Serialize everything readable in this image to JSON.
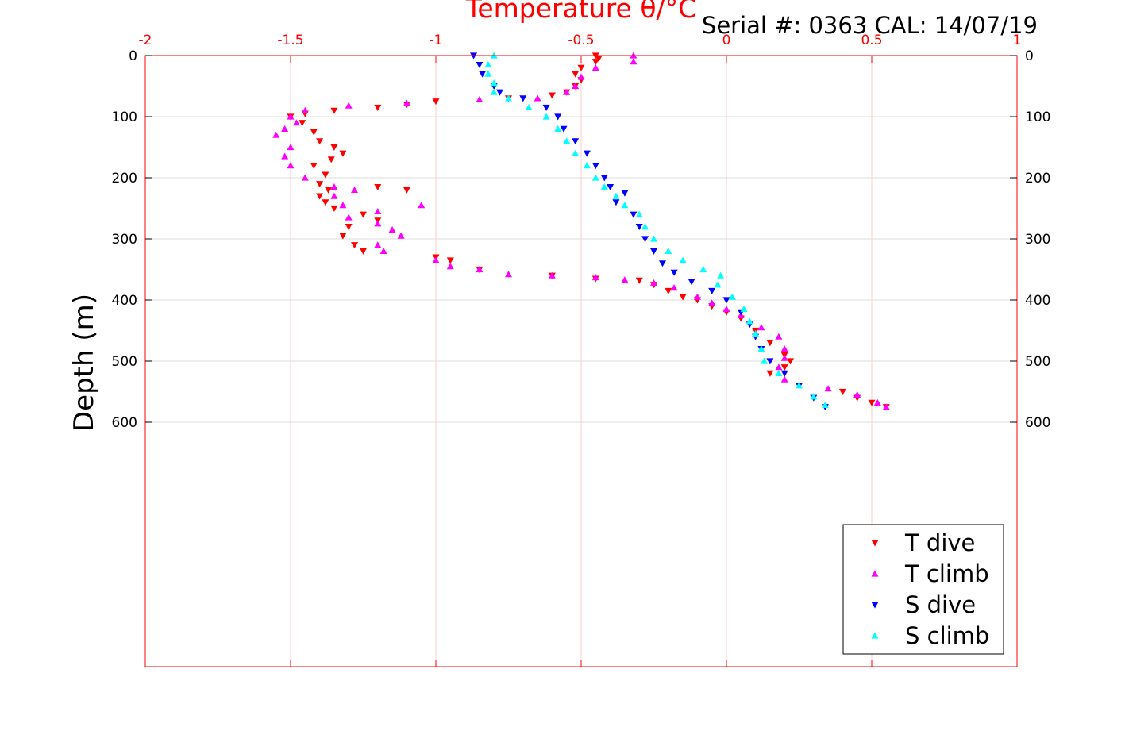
{
  "chart_data": {
    "type": "scatter",
    "title": "Temperature θ/°C",
    "subtitle": "Serial #: 0363  CAL: 14/07/19",
    "xlabel": "Temperature θ/°C",
    "ylabel": "Depth (m)",
    "xlim": [
      -2,
      1
    ],
    "ylim": [
      0,
      1000
    ],
    "y_reversed": true,
    "x_ticks": [
      "-2",
      "-1.5",
      "-1",
      "-0.5",
      "0",
      "0.5",
      "1"
    ],
    "x_tick_values": [
      -2,
      -1.5,
      -1,
      -0.5,
      0,
      0.5,
      1
    ],
    "y_ticks": [
      "0",
      "100",
      "200",
      "300",
      "400",
      "500",
      "600"
    ],
    "y_tick_values": [
      0,
      100,
      200,
      300,
      400,
      500,
      600
    ],
    "grid": true,
    "legend_position": "bottom-right",
    "colors": {
      "axis": "#ff0000",
      "grid": "#dddddd",
      "gridx": "#ffcccc"
    },
    "series": [
      {
        "name": "T dive",
        "color": "#ff0000",
        "marker": "triangle-down",
        "points": [
          [
            -0.45,
            0
          ],
          [
            -0.44,
            5
          ],
          [
            -0.45,
            10
          ],
          [
            -0.5,
            20
          ],
          [
            -0.52,
            30
          ],
          [
            -0.5,
            40
          ],
          [
            -0.52,
            50
          ],
          [
            -0.55,
            60
          ],
          [
            -0.6,
            65
          ],
          [
            -0.75,
            70
          ],
          [
            -1.0,
            75
          ],
          [
            -1.1,
            80
          ],
          [
            -1.2,
            85
          ],
          [
            -1.35,
            90
          ],
          [
            -1.45,
            95
          ],
          [
            -1.5,
            100
          ],
          [
            -1.46,
            110
          ],
          [
            -1.42,
            125
          ],
          [
            -1.4,
            140
          ],
          [
            -1.35,
            150
          ],
          [
            -1.32,
            160
          ],
          [
            -1.36,
            170
          ],
          [
            -1.42,
            180
          ],
          [
            -1.38,
            195
          ],
          [
            -1.4,
            210
          ],
          [
            -1.37,
            220
          ],
          [
            -1.1,
            220
          ],
          [
            -1.2,
            215
          ],
          [
            -1.4,
            230
          ],
          [
            -1.38,
            240
          ],
          [
            -1.35,
            250
          ],
          [
            -1.25,
            260
          ],
          [
            -1.2,
            270
          ],
          [
            -1.3,
            280
          ],
          [
            -1.32,
            295
          ],
          [
            -1.28,
            310
          ],
          [
            -1.25,
            320
          ],
          [
            -1.0,
            330
          ],
          [
            -0.95,
            335
          ],
          [
            -0.85,
            350
          ],
          [
            -0.6,
            360
          ],
          [
            -0.45,
            365
          ],
          [
            -0.3,
            368
          ],
          [
            -0.25,
            375
          ],
          [
            -0.2,
            385
          ],
          [
            -0.15,
            395
          ],
          [
            -0.1,
            400
          ],
          [
            -0.05,
            410
          ],
          [
            0.0,
            420
          ],
          [
            0.05,
            430
          ],
          [
            0.1,
            450
          ],
          [
            0.15,
            470
          ],
          [
            0.2,
            490
          ],
          [
            0.22,
            500
          ],
          [
            0.2,
            510
          ],
          [
            0.15,
            520
          ],
          [
            0.25,
            540
          ],
          [
            0.4,
            550
          ],
          [
            0.45,
            560
          ],
          [
            0.5,
            568
          ],
          [
            0.55,
            575
          ]
        ]
      },
      {
        "name": "T climb",
        "color": "#ff00ff",
        "marker": "triangle-up",
        "points": [
          [
            -0.32,
            0
          ],
          [
            -0.32,
            10
          ],
          [
            -0.45,
            20
          ],
          [
            -0.5,
            35
          ],
          [
            -0.52,
            50
          ],
          [
            -0.55,
            60
          ],
          [
            -0.65,
            70
          ],
          [
            -0.85,
            72
          ],
          [
            -1.1,
            78
          ],
          [
            -1.3,
            82
          ],
          [
            -1.45,
            90
          ],
          [
            -1.5,
            100
          ],
          [
            -1.48,
            110
          ],
          [
            -1.52,
            120
          ],
          [
            -1.55,
            130
          ],
          [
            -1.5,
            150
          ],
          [
            -1.52,
            165
          ],
          [
            -1.5,
            180
          ],
          [
            -1.45,
            200
          ],
          [
            -1.35,
            215
          ],
          [
            -1.28,
            220
          ],
          [
            -1.35,
            230
          ],
          [
            -1.32,
            245
          ],
          [
            -1.2,
            255
          ],
          [
            -1.05,
            245
          ],
          [
            -1.3,
            265
          ],
          [
            -1.2,
            275
          ],
          [
            -1.15,
            285
          ],
          [
            -1.12,
            295
          ],
          [
            -1.2,
            310
          ],
          [
            -1.18,
            320
          ],
          [
            -1.0,
            335
          ],
          [
            -0.95,
            345
          ],
          [
            -0.85,
            350
          ],
          [
            -0.75,
            358
          ],
          [
            -0.6,
            360
          ],
          [
            -0.45,
            363
          ],
          [
            -0.35,
            367
          ],
          [
            -0.25,
            372
          ],
          [
            -0.18,
            380
          ],
          [
            -0.1,
            395
          ],
          [
            -0.05,
            405
          ],
          [
            0.0,
            415
          ],
          [
            0.05,
            425
          ],
          [
            0.12,
            445
          ],
          [
            0.18,
            460
          ],
          [
            0.2,
            480
          ],
          [
            0.2,
            495
          ],
          [
            0.18,
            510
          ],
          [
            0.2,
            530
          ],
          [
            0.35,
            545
          ],
          [
            0.45,
            555
          ],
          [
            0.52,
            568
          ],
          [
            0.55,
            575
          ]
        ]
      },
      {
        "name": "S dive",
        "color": "#0000ff",
        "marker": "triangle-down",
        "points": [
          [
            -0.87,
            0
          ],
          [
            -0.85,
            15
          ],
          [
            -0.84,
            30
          ],
          [
            -0.8,
            50
          ],
          [
            -0.78,
            60
          ],
          [
            -0.7,
            70
          ],
          [
            -0.62,
            85
          ],
          [
            -0.58,
            100
          ],
          [
            -0.56,
            120
          ],
          [
            -0.52,
            140
          ],
          [
            -0.48,
            160
          ],
          [
            -0.45,
            180
          ],
          [
            -0.42,
            200
          ],
          [
            -0.4,
            215
          ],
          [
            -0.35,
            225
          ],
          [
            -0.38,
            240
          ],
          [
            -0.32,
            260
          ],
          [
            -0.3,
            280
          ],
          [
            -0.28,
            300
          ],
          [
            -0.25,
            320
          ],
          [
            -0.22,
            340
          ],
          [
            -0.18,
            355
          ],
          [
            -0.12,
            370
          ],
          [
            -0.05,
            385
          ],
          [
            0.0,
            400
          ],
          [
            0.05,
            420
          ],
          [
            0.08,
            440
          ],
          [
            0.1,
            460
          ],
          [
            0.12,
            480
          ],
          [
            0.15,
            500
          ],
          [
            0.2,
            520
          ],
          [
            0.25,
            540
          ],
          [
            0.3,
            560
          ],
          [
            0.34,
            575
          ]
        ]
      },
      {
        "name": "S climb",
        "color": "#00ffff",
        "marker": "triangle-up",
        "points": [
          [
            -0.8,
            0
          ],
          [
            -0.82,
            15
          ],
          [
            -0.82,
            30
          ],
          [
            -0.8,
            45
          ],
          [
            -0.8,
            60
          ],
          [
            -0.75,
            70
          ],
          [
            -0.68,
            85
          ],
          [
            -0.62,
            100
          ],
          [
            -0.58,
            120
          ],
          [
            -0.55,
            140
          ],
          [
            -0.52,
            160
          ],
          [
            -0.48,
            180
          ],
          [
            -0.45,
            200
          ],
          [
            -0.42,
            215
          ],
          [
            -0.38,
            230
          ],
          [
            -0.35,
            245
          ],
          [
            -0.3,
            260
          ],
          [
            -0.28,
            280
          ],
          [
            -0.25,
            300
          ],
          [
            -0.2,
            320
          ],
          [
            -0.15,
            335
          ],
          [
            -0.08,
            350
          ],
          [
            -0.02,
            360
          ],
          [
            -0.03,
            375
          ],
          [
            0.02,
            395
          ],
          [
            0.06,
            415
          ],
          [
            0.08,
            435
          ],
          [
            0.1,
            455
          ],
          [
            0.12,
            480
          ],
          [
            0.13,
            500
          ],
          [
            0.18,
            520
          ],
          [
            0.25,
            540
          ],
          [
            0.3,
            558
          ],
          [
            0.34,
            572
          ]
        ]
      }
    ]
  }
}
